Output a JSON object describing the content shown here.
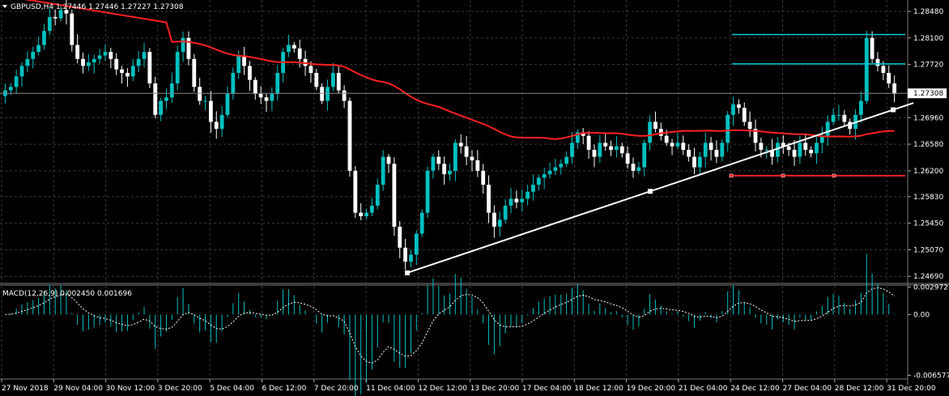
{
  "header": {
    "symbol_line": "GBPUSD,H4  1.27446 1.27446 1.27227 1.27308",
    "menu_icon": "triangle-down-icon"
  },
  "macd_header": "MACD(12,26,9) 0.002450 0.001696",
  "colors": {
    "background": "#000000",
    "bull": "#00c0c0",
    "bear": "#ffffff",
    "ma": "#ff2020",
    "trendline": "#ffffff",
    "level_lines": "#00c8d8",
    "support_line": "#ff2020",
    "grid": "#3a3a3a",
    "macd_hist": "#00c0c0",
    "macd_signal": "#ffffff"
  },
  "chart_data": [
    {
      "type": "candlestick",
      "title": "GBPUSD,H4",
      "price_axis_ticks": [
        "1.28480",
        "1.28100",
        "1.27720",
        "1.26960",
        "1.26580",
        "1.26200",
        "1.25830",
        "1.25450",
        "1.25070",
        "1.24690"
      ],
      "current_price": "1.27308",
      "x_tick_labels": [
        "27 Nov 2018",
        "29 Nov 04:00",
        "30 Nov 12:00",
        "3 Dec 20:00",
        "5 Dec 04:00",
        "6 Dec 12:00",
        "7 Dec 20:00",
        "11 Dec 04:00",
        "12 Dec 12:00",
        "13 Dec 20:00",
        "17 Dec 04:00",
        "18 Dec 12:00",
        "19 Dec 20:00",
        "21 Dec 04:00",
        "24 Dec 12:00",
        "27 Dec 04:00",
        "28 Dec 12:00",
        "31 Dec 20:00"
      ],
      "ylim": [
        1.246,
        1.2862
      ],
      "grid": true,
      "closes": [
        1.2735,
        1.274,
        1.2755,
        1.277,
        1.278,
        1.279,
        1.28,
        1.282,
        1.284,
        1.2838,
        1.285,
        1.2845,
        1.28,
        1.278,
        1.277,
        1.2775,
        1.278,
        1.2785,
        1.279,
        1.278,
        1.2765,
        1.276,
        1.2755,
        1.277,
        1.278,
        1.279,
        1.2745,
        1.27,
        1.272,
        1.2725,
        1.2745,
        1.279,
        1.281,
        1.278,
        1.274,
        1.272,
        1.272,
        1.269,
        1.268,
        1.27,
        1.273,
        1.276,
        1.2785,
        1.277,
        1.275,
        1.273,
        1.2725,
        1.272,
        1.273,
        1.276,
        1.279,
        1.28,
        1.2795,
        1.278,
        1.277,
        1.276,
        1.274,
        1.272,
        1.274,
        1.276,
        1.2735,
        1.272,
        1.262,
        1.256,
        1.2555,
        1.256,
        1.257,
        1.26,
        1.264,
        1.263,
        1.254,
        1.251,
        1.249,
        1.25,
        1.253,
        1.256,
        1.262,
        1.264,
        1.263,
        1.2615,
        1.262,
        1.266,
        1.2655,
        1.264,
        1.2635,
        1.262,
        1.26,
        1.256,
        1.254,
        1.255,
        1.257,
        1.258,
        1.2575,
        1.258,
        1.259,
        1.26,
        1.261,
        1.2615,
        1.262,
        1.2625,
        1.263,
        1.264,
        1.266,
        1.2675,
        1.267,
        1.265,
        1.264,
        1.266,
        1.2655,
        1.265,
        1.2655,
        1.2645,
        1.263,
        1.262,
        1.2625,
        1.266,
        1.269,
        1.268,
        1.267,
        1.266,
        1.2655,
        1.266,
        1.265,
        1.264,
        1.2625,
        1.264,
        1.266,
        1.265,
        1.264,
        1.266,
        1.27,
        1.2715,
        1.271,
        1.269,
        1.268,
        1.266,
        1.265,
        1.265,
        1.264,
        1.266,
        1.2655,
        1.265,
        1.264,
        1.266,
        1.265,
        1.2645,
        1.266,
        1.267,
        1.269,
        1.27,
        1.27,
        1.269,
        1.268,
        1.27,
        1.272,
        1.281,
        1.278,
        1.277,
        1.276,
        1.2745,
        1.273
      ],
      "ma_label": "moving average",
      "macd": {
        "label": "MACD(12,26,9)",
        "value": "0.002450",
        "signal_value": "0.001696",
        "axis_ticks": [
          "0.002972",
          "0.00",
          "-0.006577"
        ],
        "ylim": [
          -0.0068,
          0.0031
        ]
      }
    }
  ]
}
